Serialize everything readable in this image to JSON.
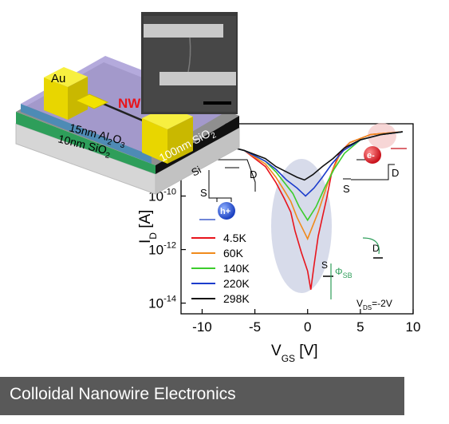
{
  "caption": "Colloidal Nanowire Electronics",
  "device": {
    "electrode_label": "Au",
    "nanowire_label": "NW",
    "layer1": "15nm Al",
    "layer1_sub": "2",
    "layer1_mid": "O",
    "layer1_sub2": "3",
    "layer2": "10nm SiO",
    "layer2_sub": "2",
    "layer3": "100nm SiO",
    "layer3_sub": "2",
    "substrate": "Si",
    "colors": {
      "gold": "#f2e200",
      "nw_label": "#e8141c",
      "oxide": "#7a3f9e",
      "green": "#2e9e5a"
    }
  },
  "schematic": {
    "electron_label": "e-",
    "hole_label": "h+",
    "source_label": "S",
    "drain_label": "D",
    "barrier_label": "Φ",
    "barrier_sub": "SB",
    "vds_label": "V",
    "vds_sub": "DS",
    "vds_value": "=-2V"
  },
  "chart_data": {
    "type": "line",
    "xlabel": "V",
    "xlabel_sub": "GS",
    "xlabel_unit": " [V]",
    "ylabel": "I",
    "ylabel_sub": "D",
    "ylabel_unit": " [A]",
    "xlim": [
      -12,
      10
    ],
    "ylim_log10": [
      -14.4,
      -7.3
    ],
    "log_y": true,
    "xticks": [
      -10,
      -5,
      0,
      5,
      10
    ],
    "yticks": [
      {
        "base": "10",
        "exp": "-10"
      },
      {
        "base": "10",
        "exp": "-12"
      },
      {
        "base": "10",
        "exp": "-14"
      }
    ],
    "ytick_values_log10": [
      -10,
      -12,
      -14
    ],
    "legend_position": "lower-left",
    "series": [
      {
        "name": "4.5K",
        "color": "#e8141c",
        "x": [
          -10,
          -6,
          -4,
          -3,
          -2.2,
          -1.6,
          -1.2,
          -0.6,
          0,
          0.3,
          0.6,
          1,
          1.4,
          1.8,
          2.3,
          3,
          4,
          6,
          9
        ],
        "log10_y": [
          -7.9,
          -8.3,
          -8.9,
          -9.5,
          -10.1,
          -10.6,
          -11.3,
          -12.1,
          -12.8,
          -13.5,
          -12.6,
          -11.5,
          -10.8,
          -10.1,
          -9.1,
          -8.4,
          -8.0,
          -7.7,
          -7.6
        ]
      },
      {
        "name": "60K",
        "color": "#f08a1c",
        "x": [
          -10,
          -6,
          -4,
          -3,
          -2.2,
          -1.6,
          -1,
          -0.5,
          0,
          0.5,
          1,
          1.5,
          2.2,
          3,
          4,
          6,
          9
        ],
        "log10_y": [
          -7.9,
          -8.3,
          -8.8,
          -9.3,
          -9.8,
          -10.2,
          -10.8,
          -11.2,
          -11.6,
          -11.1,
          -10.6,
          -10.0,
          -9.2,
          -8.5,
          -8.0,
          -7.7,
          -7.6
        ]
      },
      {
        "name": "140K",
        "color": "#3ccc2c",
        "x": [
          -10,
          -6,
          -4,
          -3,
          -2.2,
          -1.4,
          -0.8,
          0,
          0.8,
          1.6,
          2.5,
          3.5,
          5,
          7,
          9
        ],
        "log10_y": [
          -7.9,
          -8.3,
          -8.7,
          -9.1,
          -9.5,
          -9.9,
          -10.4,
          -10.9,
          -10.4,
          -9.7,
          -9.0,
          -8.4,
          -7.9,
          -7.7,
          -7.6
        ]
      },
      {
        "name": "220K",
        "color": "#1c3ccc",
        "x": [
          -10,
          -6,
          -4,
          -3,
          -2,
          -1,
          -0.2,
          0.6,
          1.4,
          2.3,
          3.4,
          5,
          7,
          9
        ],
        "log10_y": [
          -7.9,
          -8.3,
          -8.7,
          -9.0,
          -9.4,
          -9.7,
          -10.0,
          -9.7,
          -9.3,
          -8.8,
          -8.3,
          -7.9,
          -7.7,
          -7.6
        ]
      },
      {
        "name": "298K",
        "color": "#111111",
        "x": [
          -10,
          -6,
          -4,
          -3,
          -2,
          -1,
          -0.3,
          0.5,
          1.4,
          2.4,
          3.5,
          5,
          7,
          9
        ],
        "log10_y": [
          -7.9,
          -8.3,
          -8.6,
          -8.9,
          -9.1,
          -9.3,
          -9.4,
          -9.2,
          -8.9,
          -8.6,
          -8.2,
          -7.9,
          -7.7,
          -7.6
        ]
      }
    ]
  }
}
